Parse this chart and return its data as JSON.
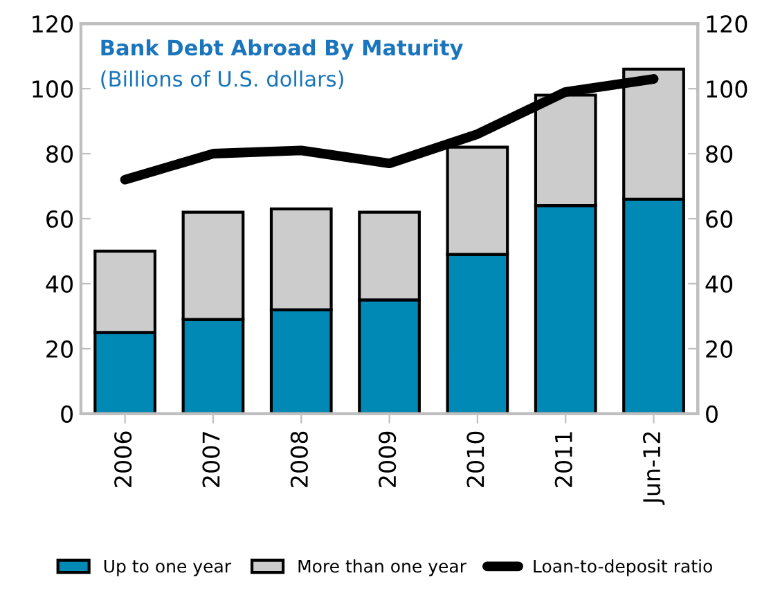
{
  "chart_data": {
    "type": "bar",
    "stacked": true,
    "title": "Bank Debt Abroad By Maturity",
    "subtitle": "(Billions of U.S. dollars)",
    "categories": [
      "2006",
      "2007",
      "2008",
      "2009",
      "2010",
      "2011",
      "Jun-12"
    ],
    "series": [
      {
        "name": "Up to one year",
        "color": "#0089b5",
        "values": [
          25,
          29,
          32,
          35,
          49,
          64,
          66
        ]
      },
      {
        "name": "More than one year",
        "color": "#cccccc",
        "values": [
          25,
          33,
          31,
          27,
          33,
          34,
          40
        ]
      },
      {
        "name": "Loan-to-deposit ratio",
        "type": "line",
        "color": "#000000",
        "values": [
          72,
          80,
          81,
          77,
          86,
          99,
          103
        ]
      }
    ],
    "ylim": [
      0,
      120
    ],
    "yticks": [
      0,
      20,
      40,
      60,
      80,
      100,
      120
    ],
    "y2lim": [
      0,
      120
    ],
    "y2ticks": [
      0,
      20,
      40,
      60,
      80,
      100,
      120
    ],
    "grid": false,
    "legend": "bottom",
    "marker": "none",
    "line_style": "solid"
  }
}
